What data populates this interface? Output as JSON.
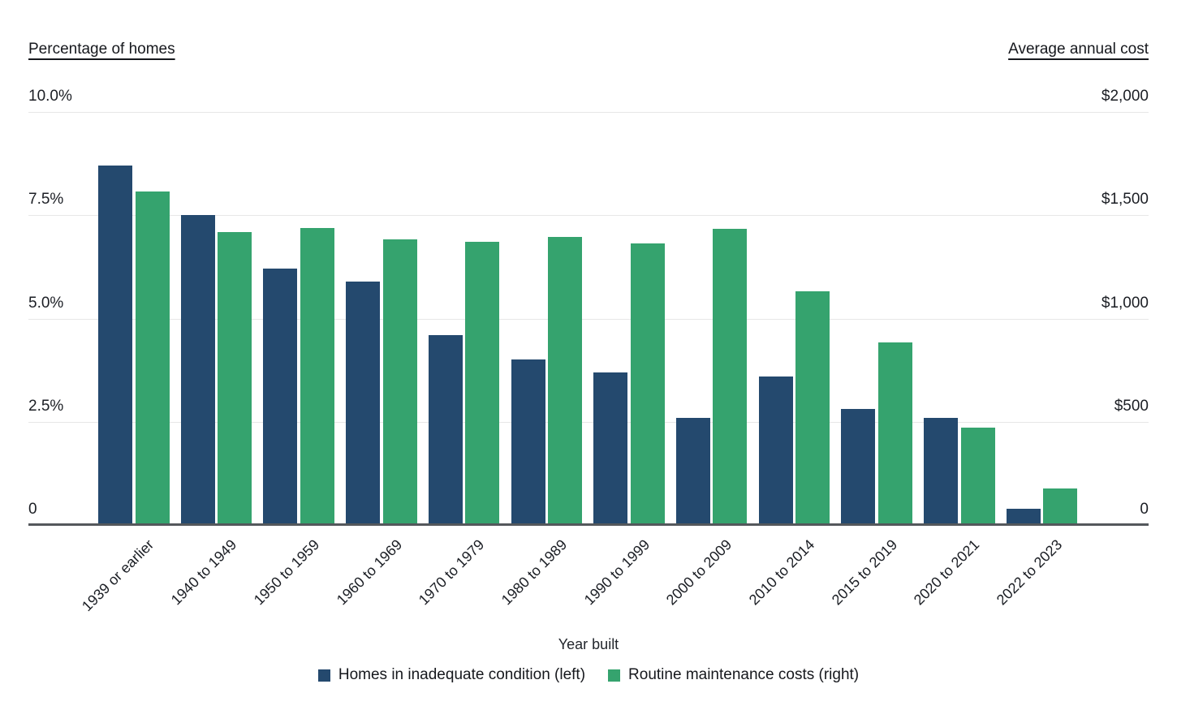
{
  "header": {
    "left_axis_title": "Percentage of homes",
    "right_axis_title": "Average annual cost"
  },
  "x_axis_title": "Year built",
  "left_axis_ticks": [
    {
      "label": "10.0%",
      "value": 10
    },
    {
      "label": "7.5%",
      "value": 7.5
    },
    {
      "label": "5.0%",
      "value": 5
    },
    {
      "label": "2.5%",
      "value": 2.5
    },
    {
      "label": "0",
      "value": 0
    }
  ],
  "right_axis_ticks": [
    {
      "label": "$2,000",
      "value": 2000
    },
    {
      "label": "$1,500",
      "value": 1500
    },
    {
      "label": "$1,000",
      "value": 1000
    },
    {
      "label": "$500",
      "value": 500
    },
    {
      "label": "0",
      "value": 0
    }
  ],
  "legend": {
    "items": [
      {
        "label": "Homes in inadequate condition (left)",
        "color": "#24496E"
      },
      {
        "label": "Routine maintenance costs (right)",
        "color": "#35A36E"
      }
    ]
  },
  "colors": {
    "inadequate_blue": "#24496E",
    "maintenance_green": "#35A36E",
    "gridline": "#e7e7e7",
    "axis_line": "#54585c"
  },
  "chart_data": {
    "type": "bar",
    "categories": [
      "1939 or earlier",
      "1940 to 1949",
      "1950 to 1959",
      "1960 to 1969",
      "1970 to 1979",
      "1980 to 1989",
      "1990 to 1999",
      "2000 to 2009",
      "2010 to 2014",
      "2015 to 2019",
      "2020 to 2021",
      "2022 to 2023"
    ],
    "series": [
      {
        "name": "Homes in inadequate condition (left)",
        "axis": "left",
        "unit": "percent",
        "color": "#24496E",
        "values": [
          8.7,
          7.5,
          6.2,
          5.9,
          4.6,
          4.0,
          3.7,
          2.6,
          3.6,
          2.8,
          2.6,
          0.4
        ]
      },
      {
        "name": "Routine maintenance costs (right)",
        "axis": "right",
        "unit": "USD",
        "color": "#35A36E",
        "values": [
          1615,
          1420,
          1440,
          1385,
          1370,
          1395,
          1365,
          1435,
          1130,
          885,
          470,
          175
        ]
      }
    ],
    "xlabel": "Year built",
    "left_ylabel": "Percentage of homes",
    "right_ylabel": "Average annual cost",
    "left_ylim": [
      0,
      10
    ],
    "right_ylim": [
      0,
      2000
    ],
    "grid": true,
    "legend_position": "bottom"
  }
}
